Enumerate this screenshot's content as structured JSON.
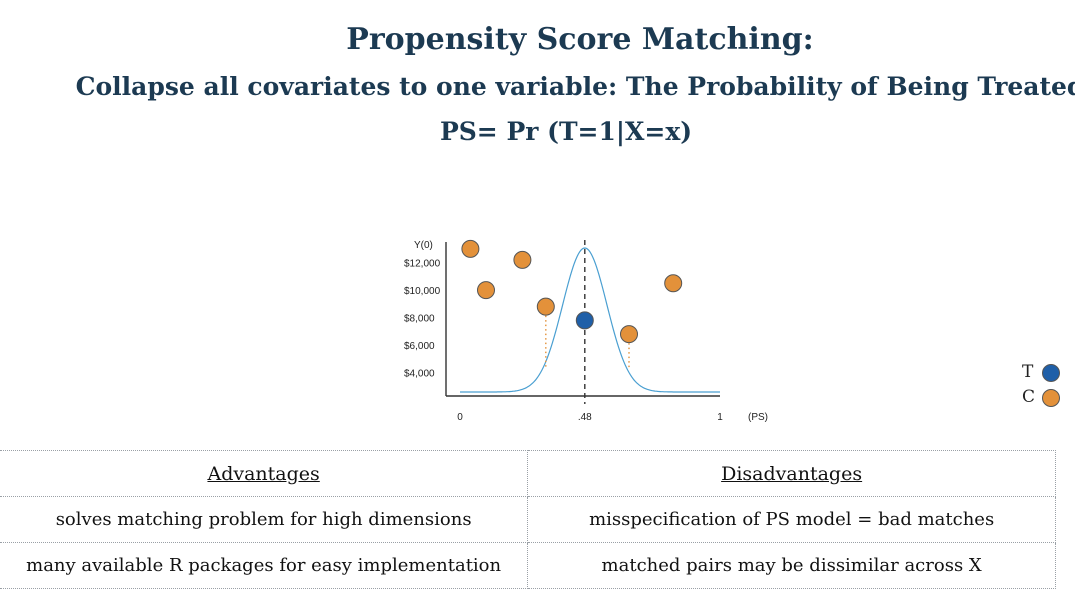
{
  "header": {
    "title": "Propensity Score Matching:",
    "subtitle": "Collapse all covariates to one variable: The Probability of Being Treated",
    "formula": "PS= Pr (T=1|X=x)"
  },
  "legend": {
    "treated_label": "T",
    "control_label": "C",
    "treated_color": "#1f5fa8",
    "control_color": "#e3913a"
  },
  "chart_data": {
    "type": "scatter",
    "title": "",
    "ylabel": "Y(0)",
    "xlabel": "(PS)",
    "x_ticks": [
      "0",
      ".48",
      "1"
    ],
    "y_ticks": [
      "$12,000",
      "$10,000",
      "$8,000",
      "$6,000",
      "$4,000"
    ],
    "xlim": [
      0,
      1
    ],
    "ylim": [
      2300,
      13500
    ],
    "median_line_x": 0.48,
    "series": [
      {
        "name": "T",
        "color": "#1f5fa8",
        "points": [
          {
            "x": 0.48,
            "y": 7800
          }
        ]
      },
      {
        "name": "C",
        "color": "#e3913a",
        "points": [
          {
            "x": 0.04,
            "y": 13000
          },
          {
            "x": 0.1,
            "y": 10000
          },
          {
            "x": 0.24,
            "y": 12200
          },
          {
            "x": 0.33,
            "y": 8800
          },
          {
            "x": 0.65,
            "y": 6800
          },
          {
            "x": 0.82,
            "y": 10500
          }
        ]
      }
    ],
    "density_curve": {
      "mean": 0.48,
      "sd": 0.085,
      "color": "#4a9fd1"
    },
    "matched_pair_markers": [
      0.33,
      0.65
    ]
  },
  "table": {
    "headers": [
      "Advantages",
      "Disadvantages"
    ],
    "rows": [
      [
        "solves matching problem for high dimensions",
        "misspecification of PS model = bad matches"
      ],
      [
        "many available R packages for easy implementation",
        "matched pairs may be dissimilar across X"
      ]
    ]
  }
}
